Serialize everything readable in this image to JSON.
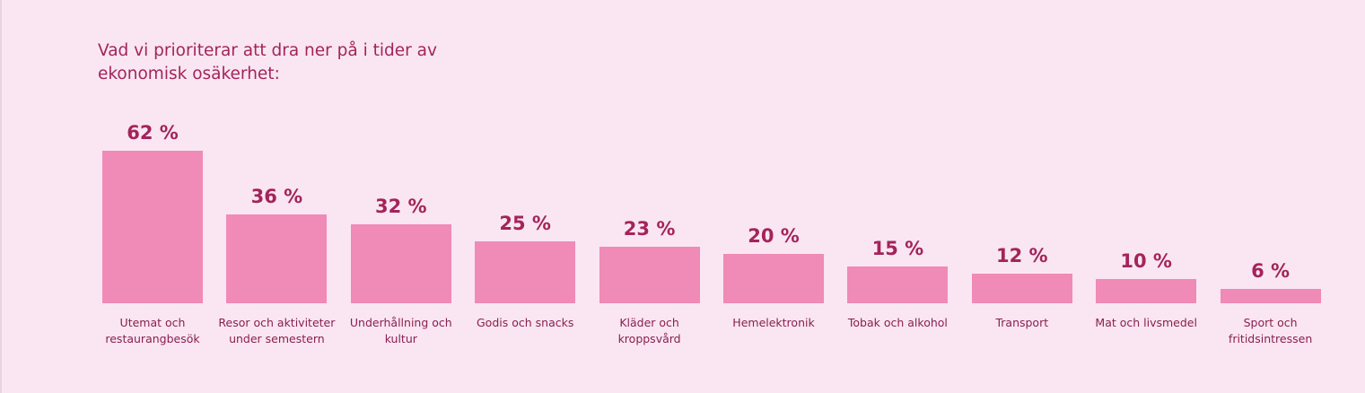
{
  "chart_data": {
    "type": "bar",
    "title": "Vad vi prioriterar att dra ner på i tider av ekonomisk osäkerhet:",
    "categories": [
      "Utemat och restaurangbesök",
      "Resor och aktiviteter under semestern",
      "Underhållning och kultur",
      "Godis och snacks",
      "Kläder och kroppsvård",
      "Hemelektronik",
      "Tobak och alkohol",
      "Transport",
      "Mat och livsmedel",
      "Sport och fritidsintressen"
    ],
    "values": [
      62,
      36,
      32,
      25,
      23,
      20,
      15,
      12,
      10,
      6
    ],
    "value_labels": [
      "62 %",
      "36 %",
      "32 %",
      "25 %",
      "23 %",
      "20 %",
      "15 %",
      "12 %",
      "10 %",
      "6 %"
    ],
    "color": "#f08ab6"
  }
}
